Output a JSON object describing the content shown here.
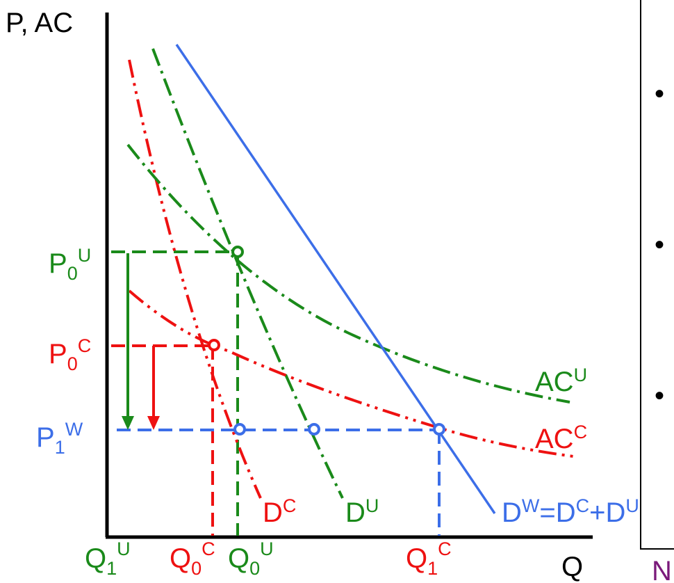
{
  "axes": {
    "y_label": "P, AC",
    "x_label": "Q"
  },
  "price_labels": {
    "p0u": {
      "main": "P",
      "sub": "0",
      "sup": "U"
    },
    "p0c": {
      "main": "P",
      "sub": "0",
      "sup": "C"
    },
    "p1w": {
      "main": "P",
      "sub": "1",
      "sup": "W"
    }
  },
  "quantity_labels": {
    "q1u": {
      "main": "Q",
      "sub": "1",
      "sup": "U"
    },
    "q0c": {
      "main": "Q",
      "sub": "0",
      "sup": "C"
    },
    "q0u": {
      "main": "Q",
      "sub": "0",
      "sup": "U"
    },
    "q1c": {
      "main": "Q",
      "sub": "1",
      "sup": "C"
    }
  },
  "curve_labels": {
    "acu": {
      "main": "AC",
      "sup": "U"
    },
    "acc": {
      "main": "AC",
      "sup": "C"
    },
    "dc": {
      "main": "D",
      "sup": "C"
    },
    "du": {
      "main": "D",
      "sup": "U"
    },
    "dw": {
      "p1": "D",
      "s1": "W",
      "p2": "=D",
      "s2": "C",
      "p3": "+D",
      "s3": "U"
    }
  },
  "colors": {
    "green": "#1a8a1a",
    "red": "#ee1111",
    "blue": "#3c6ee8",
    "black": "#000000",
    "purple": "#7a1a7a"
  },
  "panel": {
    "bullets": [
      "•",
      "•",
      "•"
    ],
    "footer_char": "N"
  }
}
